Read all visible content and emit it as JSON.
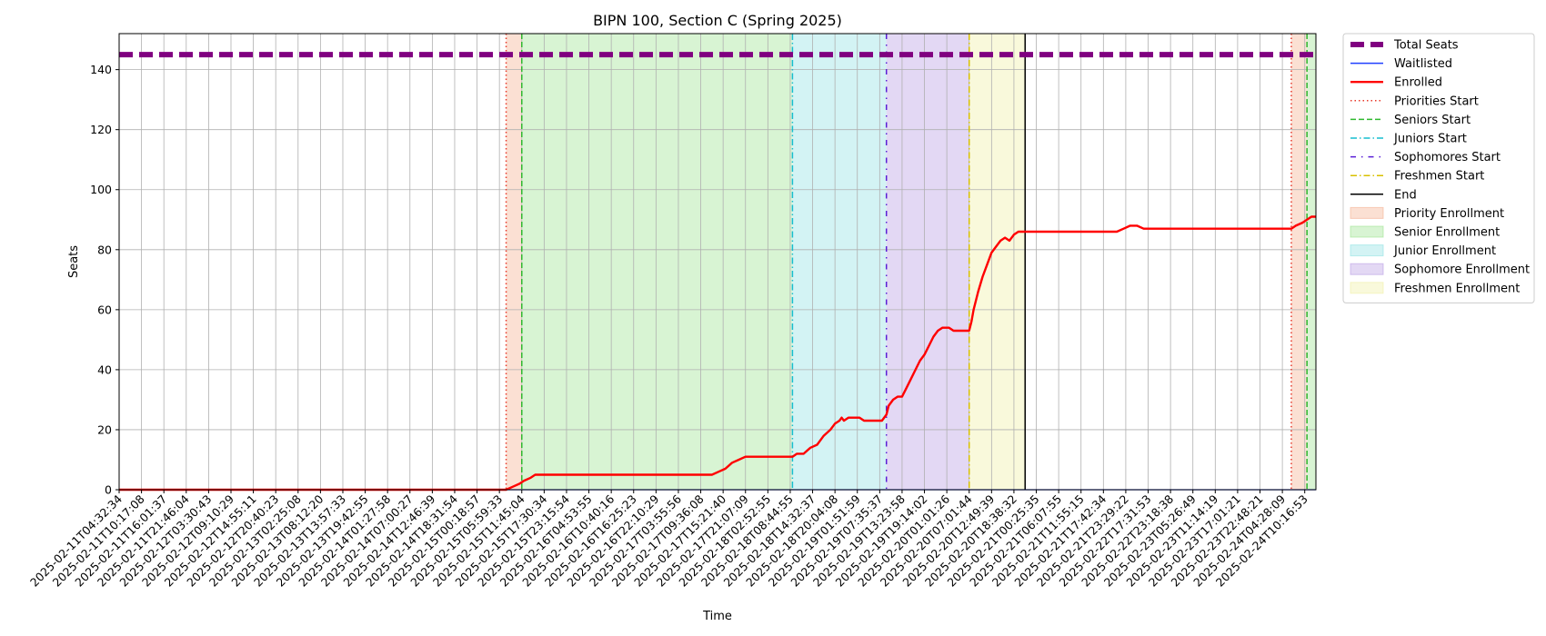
{
  "chart_data": {
    "type": "line",
    "title": "BIPN 100, Section C (Spring 2025)",
    "xlabel": "Time",
    "ylabel": "Seats",
    "ylim": [
      0,
      152
    ],
    "yticks": [
      0,
      20,
      40,
      60,
      80,
      100,
      120,
      140
    ],
    "x_range_index": [
      0,
      53.5
    ],
    "xtick_labels": [
      "2025-02-11T04:32:34",
      "2025-02-11T10:17:08",
      "2025-02-11T16:01:37",
      "2025-02-11T21:46:04",
      "2025-02-12T03:30:43",
      "2025-02-12T09:10:29",
      "2025-02-12T14:55:11",
      "2025-02-12T20:40:23",
      "2025-02-13T02:25:08",
      "2025-02-13T08:12:20",
      "2025-02-13T13:57:33",
      "2025-02-13T19:42:55",
      "2025-02-14T01:27:58",
      "2025-02-14T07:00:27",
      "2025-02-14T12:46:39",
      "2025-02-14T18:31:54",
      "2025-02-15T00:18:57",
      "2025-02-15T05:59:33",
      "2025-02-15T11:45:04",
      "2025-02-15T17:30:34",
      "2025-02-15T23:15:54",
      "2025-02-16T04:53:55",
      "2025-02-16T10:40:16",
      "2025-02-16T16:25:23",
      "2025-02-16T22:10:29",
      "2025-02-17T03:55:56",
      "2025-02-17T09:36:08",
      "2025-02-17T15:21:40",
      "2025-02-17T21:07:09",
      "2025-02-18T02:52:55",
      "2025-02-18T08:44:55",
      "2025-02-18T14:32:37",
      "2025-02-18T20:04:08",
      "2025-02-19T01:51:59",
      "2025-02-19T07:35:37",
      "2025-02-19T13:23:58",
      "2025-02-19T19:14:02",
      "2025-02-20T01:01:26",
      "2025-02-20T07:01:44",
      "2025-02-20T12:49:39",
      "2025-02-20T18:38:32",
      "2025-02-21T00:25:35",
      "2025-02-21T06:07:55",
      "2025-02-21T11:55:15",
      "2025-02-21T17:42:34",
      "2025-02-21T23:29:22",
      "2025-02-22T17:31:53",
      "2025-02-22T23:18:38",
      "2025-02-23T05:26:49",
      "2025-02-23T11:14:19",
      "2025-02-23T17:01:21",
      "2025-02-23T22:48:21",
      "2025-02-24T04:28:09",
      "2025-02-24T10:16:53"
    ],
    "grid": true,
    "legend_position": "outside-right",
    "phases": [
      {
        "name": "Priority Enrollment",
        "start": 17.3,
        "end": 18.0,
        "color": "#f4a582"
      },
      {
        "name": "Senior Enrollment",
        "start": 18.0,
        "end": 30.1,
        "color": "#90e080"
      },
      {
        "name": "Junior Enrollment",
        "start": 30.1,
        "end": 34.3,
        "color": "#80dde0"
      },
      {
        "name": "Sophomore Enrollment",
        "start": 34.3,
        "end": 38.0,
        "color": "#b090e0"
      },
      {
        "name": "Freshmen Enrollment",
        "start": 38.0,
        "end": 40.5,
        "color": "#eeee99"
      },
      {
        "name": "Priority Enrollment",
        "start": 52.4,
        "end": 53.1,
        "color": "#f4a582"
      },
      {
        "name": "Senior Enrollment",
        "start": 53.1,
        "end": 53.5,
        "color": "#90e080"
      }
    ],
    "markers": [
      {
        "name": "Priorities Start",
        "x": 17.3,
        "color": "#e8392b",
        "style": "dotted"
      },
      {
        "name": "Seniors Start",
        "x": 18.0,
        "color": "#2fb82f",
        "style": "dashed"
      },
      {
        "name": "Juniors Start",
        "x": 30.1,
        "color": "#17becf",
        "style": "dashdot"
      },
      {
        "name": "Sophomores Start",
        "x": 34.3,
        "color": "#5a1fd6",
        "style": "loosedashdot"
      },
      {
        "name": "Freshmen Start",
        "x": 38.0,
        "color": "#d8c000",
        "style": "dashdot"
      },
      {
        "name": "End",
        "x": 40.5,
        "color": "#000000",
        "style": "solid"
      },
      {
        "name": "Priorities Start",
        "x": 52.4,
        "color": "#e8392b",
        "style": "dotted"
      },
      {
        "name": "Seniors Start",
        "x": 53.1,
        "color": "#2fb82f",
        "style": "dashed"
      }
    ],
    "series": [
      {
        "name": "Total Seats",
        "color": "#800080",
        "style": "thick-dashed",
        "points": [
          [
            0,
            145
          ],
          [
            53.5,
            145
          ]
        ]
      },
      {
        "name": "Waitlisted",
        "color": "#1f3fff",
        "style": "solid",
        "points": [
          [
            0,
            0
          ],
          [
            53.5,
            0
          ]
        ]
      },
      {
        "name": "Enrolled",
        "color": "#ff0000",
        "style": "solid",
        "points": [
          [
            0,
            0
          ],
          [
            17.3,
            0
          ],
          [
            17.6,
            1
          ],
          [
            17.9,
            2
          ],
          [
            18.1,
            3
          ],
          [
            18.4,
            4
          ],
          [
            18.6,
            5
          ],
          [
            26.5,
            5
          ],
          [
            26.8,
            6
          ],
          [
            27.1,
            7
          ],
          [
            27.4,
            9
          ],
          [
            27.7,
            10
          ],
          [
            28.0,
            11
          ],
          [
            30.1,
            11
          ],
          [
            30.3,
            12
          ],
          [
            30.6,
            12
          ],
          [
            30.9,
            14
          ],
          [
            31.2,
            15
          ],
          [
            31.5,
            18
          ],
          [
            31.8,
            20
          ],
          [
            32.0,
            22
          ],
          [
            32.2,
            23
          ],
          [
            32.3,
            24
          ],
          [
            32.4,
            23
          ],
          [
            32.6,
            24
          ],
          [
            33.1,
            24
          ],
          [
            33.3,
            23
          ],
          [
            34.1,
            23
          ],
          [
            34.3,
            25
          ],
          [
            34.4,
            28
          ],
          [
            34.6,
            30
          ],
          [
            34.8,
            31
          ],
          [
            35.0,
            31
          ],
          [
            35.2,
            34
          ],
          [
            35.4,
            37
          ],
          [
            35.6,
            40
          ],
          [
            35.8,
            43
          ],
          [
            36.0,
            45
          ],
          [
            36.2,
            48
          ],
          [
            36.4,
            51
          ],
          [
            36.6,
            53
          ],
          [
            36.8,
            54
          ],
          [
            37.1,
            54
          ],
          [
            37.3,
            53
          ],
          [
            38.0,
            53
          ],
          [
            38.1,
            56
          ],
          [
            38.2,
            60
          ],
          [
            38.4,
            66
          ],
          [
            38.6,
            71
          ],
          [
            38.8,
            75
          ],
          [
            39.0,
            79
          ],
          [
            39.2,
            81
          ],
          [
            39.4,
            83
          ],
          [
            39.6,
            84
          ],
          [
            39.8,
            83
          ],
          [
            40.0,
            85
          ],
          [
            40.2,
            86
          ],
          [
            40.5,
            86
          ],
          [
            44.6,
            86
          ],
          [
            44.9,
            87
          ],
          [
            45.2,
            88
          ],
          [
            45.5,
            88
          ],
          [
            45.8,
            87
          ],
          [
            52.4,
            87
          ],
          [
            52.6,
            88
          ],
          [
            52.9,
            89
          ],
          [
            53.1,
            90
          ],
          [
            53.3,
            91
          ],
          [
            53.5,
            91
          ]
        ]
      }
    ],
    "legend": [
      {
        "label": "Total Seats",
        "kind": "line",
        "color": "#800080",
        "style": "thick-dashed"
      },
      {
        "label": "Waitlisted",
        "kind": "line",
        "color": "#1f3fff",
        "style": "solid"
      },
      {
        "label": "Enrolled",
        "kind": "line",
        "color": "#ff0000",
        "style": "solid-thick"
      },
      {
        "label": "Priorities Start",
        "kind": "line",
        "color": "#e8392b",
        "style": "dotted"
      },
      {
        "label": "Seniors Start",
        "kind": "line",
        "color": "#2fb82f",
        "style": "dashed"
      },
      {
        "label": "Juniors Start",
        "kind": "line",
        "color": "#17becf",
        "style": "dashdot"
      },
      {
        "label": "Sophomores Start",
        "kind": "line",
        "color": "#5a1fd6",
        "style": "loosedashdot"
      },
      {
        "label": "Freshmen Start",
        "kind": "line",
        "color": "#d8c000",
        "style": "dashdot"
      },
      {
        "label": "End",
        "kind": "line",
        "color": "#000000",
        "style": "solid"
      },
      {
        "label": "Priority Enrollment",
        "kind": "patch",
        "color": "#f4a582"
      },
      {
        "label": "Senior Enrollment",
        "kind": "patch",
        "color": "#90e080"
      },
      {
        "label": "Junior Enrollment",
        "kind": "patch",
        "color": "#80dde0"
      },
      {
        "label": "Sophomore Enrollment",
        "kind": "patch",
        "color": "#b090e0"
      },
      {
        "label": "Freshmen Enrollment",
        "kind": "patch",
        "color": "#eeee99"
      }
    ]
  }
}
